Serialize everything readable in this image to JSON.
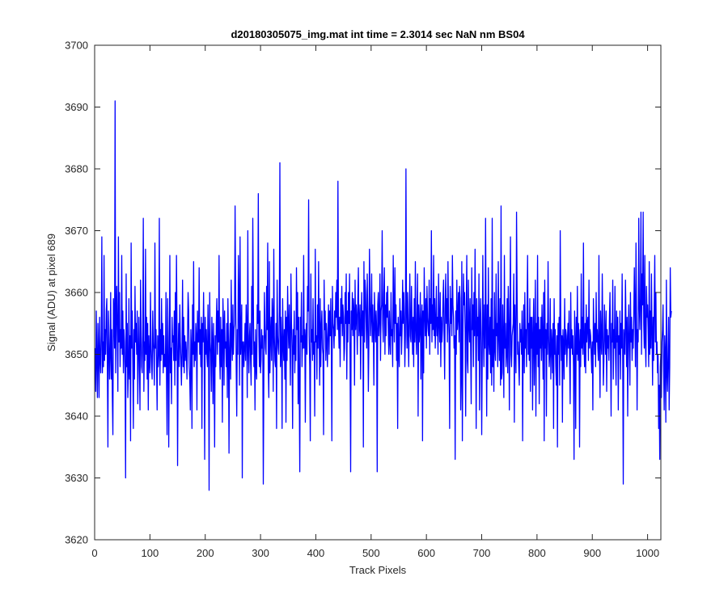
{
  "chart_data": {
    "type": "line",
    "title": "d20180305075_img.mat int time = 2.3014 sec  NaN nm BS04",
    "xlabel": "Track Pixels",
    "ylabel": "Signal (ADU) at pixel 689",
    "xlim": [
      0,
      1024
    ],
    "ylim": [
      3620,
      3700
    ],
    "xticks": [
      0,
      100,
      200,
      300,
      400,
      500,
      600,
      700,
      800,
      900,
      1000
    ],
    "yticks": [
      3620,
      3630,
      3640,
      3650,
      3660,
      3670,
      3680,
      3690,
      3700
    ],
    "grid": false,
    "legend": "none",
    "series": [
      {
        "color": "#0000ff",
        "x_start": 1,
        "x_step": 1,
        "values": [
          3651,
          3644,
          3657,
          3649,
          3643,
          3655,
          3650,
          3643,
          3656,
          3649,
          3647,
          3653,
          3669,
          3647,
          3652,
          3648,
          3666,
          3649,
          3654,
          3650,
          3657,
          3659,
          3648,
          3635,
          3657,
          3652,
          3646,
          3650,
          3660,
          3646,
          3654,
          3643,
          3637,
          3659,
          3656,
          3651,
          3691,
          3647,
          3656,
          3661,
          3653,
          3644,
          3669,
          3652,
          3660,
          3648,
          3654,
          3651,
          3666,
          3650,
          3657,
          3647,
          3654,
          3652,
          3647,
          3630,
          3663,
          3648,
          3655,
          3643,
          3647,
          3659,
          3646,
          3653,
          3636,
          3668,
          3651,
          3657,
          3649,
          3638,
          3654,
          3646,
          3661,
          3652,
          3655,
          3650,
          3657,
          3642,
          3650,
          3656,
          3648,
          3641,
          3662,
          3654,
          3648,
          3647,
          3653,
          3672,
          3644,
          3652,
          3649,
          3667,
          3650,
          3656,
          3646,
          3655,
          3641,
          3653,
          3649,
          3647,
          3660,
          3651,
          3648,
          3646,
          3657,
          3652,
          3650,
          3645,
          3668,
          3651,
          3654,
          3648,
          3641,
          3653,
          3648,
          3650,
          3672,
          3645,
          3654,
          3649,
          3659,
          3650,
          3655,
          3647,
          3653,
          3648,
          3650,
          3648,
          3660,
          3646,
          3637,
          3659,
          3652,
          3635,
          3649,
          3666,
          3647,
          3651,
          3642,
          3656,
          3652,
          3653,
          3649,
          3657,
          3645,
          3660,
          3649,
          3666,
          3654,
          3632,
          3650,
          3655,
          3648,
          3658,
          3652,
          3649,
          3645,
          3651,
          3662,
          3648,
          3656,
          3647,
          3653,
          3649,
          3652,
          3650,
          3646,
          3653,
          3660,
          3657,
          3648,
          3646,
          3641,
          3654,
          3651,
          3638,
          3658,
          3650,
          3665,
          3648,
          3652,
          3649,
          3655,
          3653,
          3641,
          3657,
          3652,
          3652,
          3664,
          3650,
          3654,
          3648,
          3656,
          3638,
          3655,
          3652,
          3660,
          3652,
          3633,
          3656,
          3650,
          3654,
          3650,
          3648,
          3658,
          3652,
          3628,
          3660,
          3652,
          3650,
          3644,
          3656,
          3652,
          3642,
          3655,
          3649,
          3635,
          3653,
          3648,
          3655,
          3659,
          3650,
          3657,
          3652,
          3666,
          3650,
          3646,
          3656,
          3648,
          3654,
          3639,
          3659,
          3655,
          3645,
          3657,
          3651,
          3652,
          3648,
          3655,
          3643,
          3659,
          3652,
          3634,
          3651,
          3655,
          3646,
          3662,
          3652,
          3649,
          3658,
          3650,
          3654,
          3655,
          3674,
          3660,
          3648,
          3640,
          3654,
          3650,
          3666,
          3659,
          3645,
          3669,
          3650,
          3653,
          3658,
          3630,
          3652,
          3652,
          3648,
          3651,
          3655,
          3649,
          3658,
          3654,
          3643,
          3670,
          3651,
          3647,
          3653,
          3655,
          3649,
          3645,
          3661,
          3650,
          3672,
          3659,
          3648,
          3652,
          3641,
          3654,
          3648,
          3646,
          3658,
          3655,
          3676,
          3653,
          3648,
          3657,
          3647,
          3649,
          3654,
          3651,
          3653,
          3629,
          3646,
          3660,
          3654,
          3651,
          3650,
          3661,
          3654,
          3668,
          3648,
          3643,
          3665,
          3647,
          3653,
          3656,
          3649,
          3659,
          3656,
          3644,
          3667,
          3653,
          3649,
          3648,
          3655,
          3638,
          3662,
          3653,
          3651,
          3650,
          3657,
          3681,
          3648,
          3656,
          3652,
          3638,
          3659,
          3652,
          3649,
          3654,
          3646,
          3657,
          3639,
          3656,
          3649,
          3661,
          3655,
          3651,
          3658,
          3652,
          3645,
          3663,
          3655,
          3651,
          3638,
          3654,
          3650,
          3657,
          3647,
          3653,
          3649,
          3664,
          3654,
          3660,
          3642,
          3656,
          3645,
          3631,
          3656,
          3652,
          3660,
          3648,
          3653,
          3651,
          3666,
          3651,
          3654,
          3639,
          3653,
          3655,
          3650,
          3661,
          3657,
          3675,
          3653,
          3648,
          3636,
          3663,
          3652,
          3654,
          3649,
          3659,
          3650,
          3652,
          3640,
          3667,
          3652,
          3653,
          3646,
          3658,
          3651,
          3665,
          3653,
          3645,
          3659,
          3648,
          3654,
          3657,
          3651,
          3650,
          3637,
          3662,
          3654,
          3657,
          3649,
          3655,
          3652,
          3648,
          3654,
          3658,
          3650,
          3657,
          3653,
          3659,
          3652,
          3636,
          3661,
          3655,
          3654,
          3651,
          3657,
          3653,
          3660,
          3656,
          3662,
          3654,
          3678,
          3655,
          3651,
          3656,
          3648,
          3659,
          3655,
          3661,
          3653,
          3658,
          3656,
          3649,
          3651,
          3660,
          3655,
          3663,
          3646,
          3657,
          3652,
          3660,
          3655,
          3663,
          3648,
          3631,
          3657,
          3654,
          3660,
          3653,
          3659,
          3657,
          3645,
          3662,
          3654,
          3658,
          3656,
          3650,
          3659,
          3664,
          3653,
          3655,
          3658,
          3646,
          3655,
          3660,
          3653,
          3657,
          3635,
          3665,
          3652,
          3662,
          3660,
          3655,
          3651,
          3663,
          3656,
          3644,
          3652,
          3667,
          3659,
          3653,
          3656,
          3663,
          3652,
          3658,
          3654,
          3645,
          3660,
          3656,
          3652,
          3657,
          3654,
          3631,
          3658,
          3660,
          3653,
          3656,
          3663,
          3649,
          3657,
          3658,
          3670,
          3655,
          3652,
          3660,
          3664,
          3650,
          3658,
          3653,
          3660,
          3656,
          3661,
          3654,
          3650,
          3657,
          3652,
          3650,
          3660,
          3653,
          3654,
          3648,
          3666,
          3657,
          3652,
          3664,
          3655,
          3658,
          3649,
          3655,
          3638,
          3656,
          3651,
          3648,
          3659,
          3653,
          3657,
          3650,
          3654,
          3662,
          3655,
          3660,
          3656,
          3648,
          3653,
          3680,
          3657,
          3651,
          3660,
          3654,
          3648,
          3656,
          3663,
          3653,
          3652,
          3661,
          3655,
          3650,
          3656,
          3648,
          3659,
          3652,
          3665,
          3654,
          3650,
          3656,
          3663,
          3640,
          3658,
          3652,
          3654,
          3660,
          3646,
          3655,
          3658,
          3636,
          3657,
          3647,
          3664,
          3657,
          3653,
          3659,
          3651,
          3661,
          3656,
          3654,
          3653,
          3662,
          3650,
          3659,
          3655,
          3670,
          3652,
          3658,
          3654,
          3666,
          3653,
          3659,
          3651,
          3655,
          3661,
          3653,
          3656,
          3650,
          3663,
          3655,
          3652,
          3660,
          3648,
          3656,
          3652,
          3654,
          3659,
          3662,
          3653,
          3646,
          3658,
          3663,
          3655,
          3659,
          3652,
          3665,
          3656,
          3653,
          3638,
          3661,
          3655,
          3659,
          3653,
          3666,
          3658,
          3656,
          3651,
          3653,
          3633,
          3657,
          3650,
          3662,
          3654,
          3656,
          3660,
          3652,
          3661,
          3659,
          3641,
          3647,
          3665,
          3636,
          3652,
          3663,
          3658,
          3660,
          3654,
          3640,
          3657,
          3666,
          3649,
          3647,
          3662,
          3655,
          3652,
          3659,
          3651,
          3642,
          3664,
          3654,
          3658,
          3648,
          3660,
          3653,
          3667,
          3654,
          3638,
          3659,
          3653,
          3656,
          3649,
          3663,
          3641,
          3655,
          3659,
          3652,
          3637,
          3650,
          3666,
          3654,
          3648,
          3658,
          3651,
          3672,
          3655,
          3640,
          3658,
          3646,
          3664,
          3652,
          3650,
          3656,
          3647,
          3659,
          3645,
          3672,
          3648,
          3654,
          3644,
          3660,
          3651,
          3649,
          3663,
          3653,
          3655,
          3648,
          3665,
          3653,
          3649,
          3659,
          3645,
          3674,
          3646,
          3647,
          3658,
          3652,
          3643,
          3666,
          3651,
          3655,
          3648,
          3650,
          3659,
          3647,
          3661,
          3655,
          3641,
          3657,
          3669,
          3650,
          3648,
          3653,
          3654,
          3655,
          3663,
          3639,
          3658,
          3652,
          3647,
          3673,
          3660,
          3650,
          3652,
          3648,
          3645,
          3655,
          3652,
          3654,
          3650,
          3657,
          3636,
          3652,
          3658,
          3647,
          3660,
          3651,
          3654,
          3648,
          3657,
          3666,
          3650,
          3655,
          3649,
          3659,
          3644,
          3656,
          3651,
          3656,
          3641,
          3653,
          3659,
          3645,
          3652,
          3662,
          3640,
          3655,
          3650,
          3666,
          3648,
          3656,
          3642,
          3654,
          3651,
          3656,
          3649,
          3658,
          3653,
          3646,
          3660,
          3636,
          3662,
          3651,
          3654,
          3640,
          3655,
          3650,
          3665,
          3653,
          3648,
          3650,
          3659,
          3646,
          3654,
          3652,
          3647,
          3655,
          3638,
          3659,
          3650,
          3654,
          3648,
          3645,
          3653,
          3635,
          3655,
          3650,
          3656,
          3645,
          3670,
          3655,
          3649,
          3653,
          3639,
          3654,
          3651,
          3646,
          3659,
          3650,
          3654,
          3653,
          3648,
          3652,
          3655,
          3651,
          3657,
          3649,
          3642,
          3660,
          3651,
          3654,
          3650,
          3653,
          3648,
          3633,
          3657,
          3652,
          3638,
          3656,
          3650,
          3661,
          3649,
          3655,
          3652,
          3635,
          3654,
          3648,
          3663,
          3651,
          3656,
          3650,
          3668,
          3652,
          3648,
          3655,
          3647,
          3658,
          3652,
          3655,
          3656,
          3649,
          3662,
          3651,
          3654,
          3653,
          3650,
          3647,
          3652,
          3641,
          3659,
          3654,
          3650,
          3655,
          3648,
          3660,
          3652,
          3654,
          3651,
          3649,
          3666,
          3651,
          3643,
          3657,
          3652,
          3650,
          3663,
          3654,
          3645,
          3649,
          3658,
          3653,
          3650,
          3657,
          3644,
          3654,
          3651,
          3653,
          3649,
          3656,
          3660,
          3651,
          3640,
          3655,
          3652,
          3662,
          3646,
          3654,
          3651,
          3661,
          3650,
          3645,
          3657,
          3652,
          3656,
          3641,
          3653,
          3650,
          3657,
          3646,
          3655,
          3651,
          3663,
          3649,
          3629,
          3654,
          3652,
          3650,
          3662,
          3655,
          3648,
          3656,
          3640,
          3653,
          3658,
          3651,
          3645,
          3660,
          3652,
          3656,
          3649,
          3654,
          3651,
          3656,
          3664,
          3657,
          3648,
          3668,
          3656,
          3641,
          3654,
          3652,
          3672,
          3658,
          3654,
          3659,
          3673,
          3650,
          3663,
          3658,
          3673,
          3655,
          3651,
          3666,
          3652,
          3648,
          3661,
          3656,
          3658,
          3654,
          3648,
          3665,
          3650,
          3657,
          3651,
          3663,
          3654,
          3645,
          3656,
          3649,
          3658,
          3666,
          3652,
          3660,
          3650,
          3652,
          3647,
          3650,
          3638,
          3645,
          3633,
          3648,
          3650,
          3643,
          3652,
          3654,
          3658,
          3648,
          3641,
          3653,
          3650,
          3639,
          3662,
          3647,
          3644,
          3650,
          3656,
          3641,
          3648,
          3664,
          3656,
          3657
        ]
      }
    ]
  }
}
